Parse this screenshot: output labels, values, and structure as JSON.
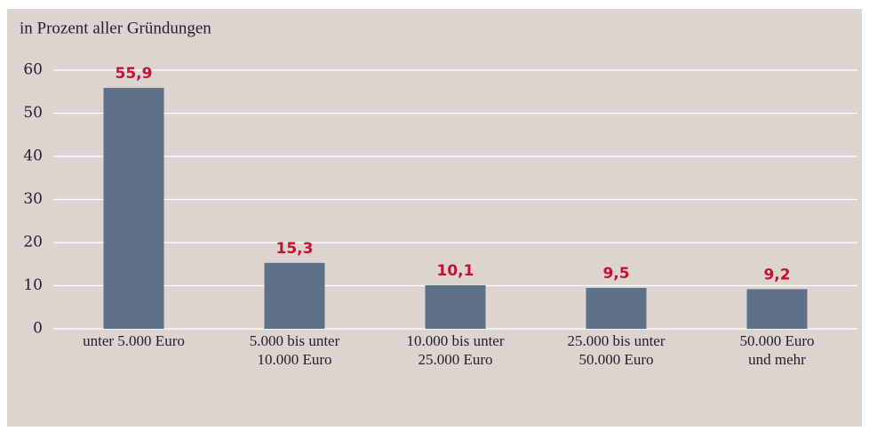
{
  "chart_data": {
    "type": "bar",
    "title": "in Prozent aller Gründungen",
    "categories": [
      "unter 5.000 Euro",
      "5.000 bis unter\n10.000 Euro",
      "10.000 bis unter\n25.000 Euro",
      "25.000 bis unter\n50.000 Euro",
      "50.000 Euro\nund mehr"
    ],
    "values": [
      55.9,
      15.3,
      10.1,
      9.5,
      9.2
    ],
    "value_labels": [
      "55,9",
      "15,3",
      "10,1",
      "9,5",
      "9,2"
    ],
    "color": "#5f7189",
    "label_color": "#c8102e",
    "ylim": [
      0,
      60
    ],
    "yticks": [
      0,
      10,
      20,
      30,
      40,
      50,
      60
    ],
    "grid": true
  }
}
